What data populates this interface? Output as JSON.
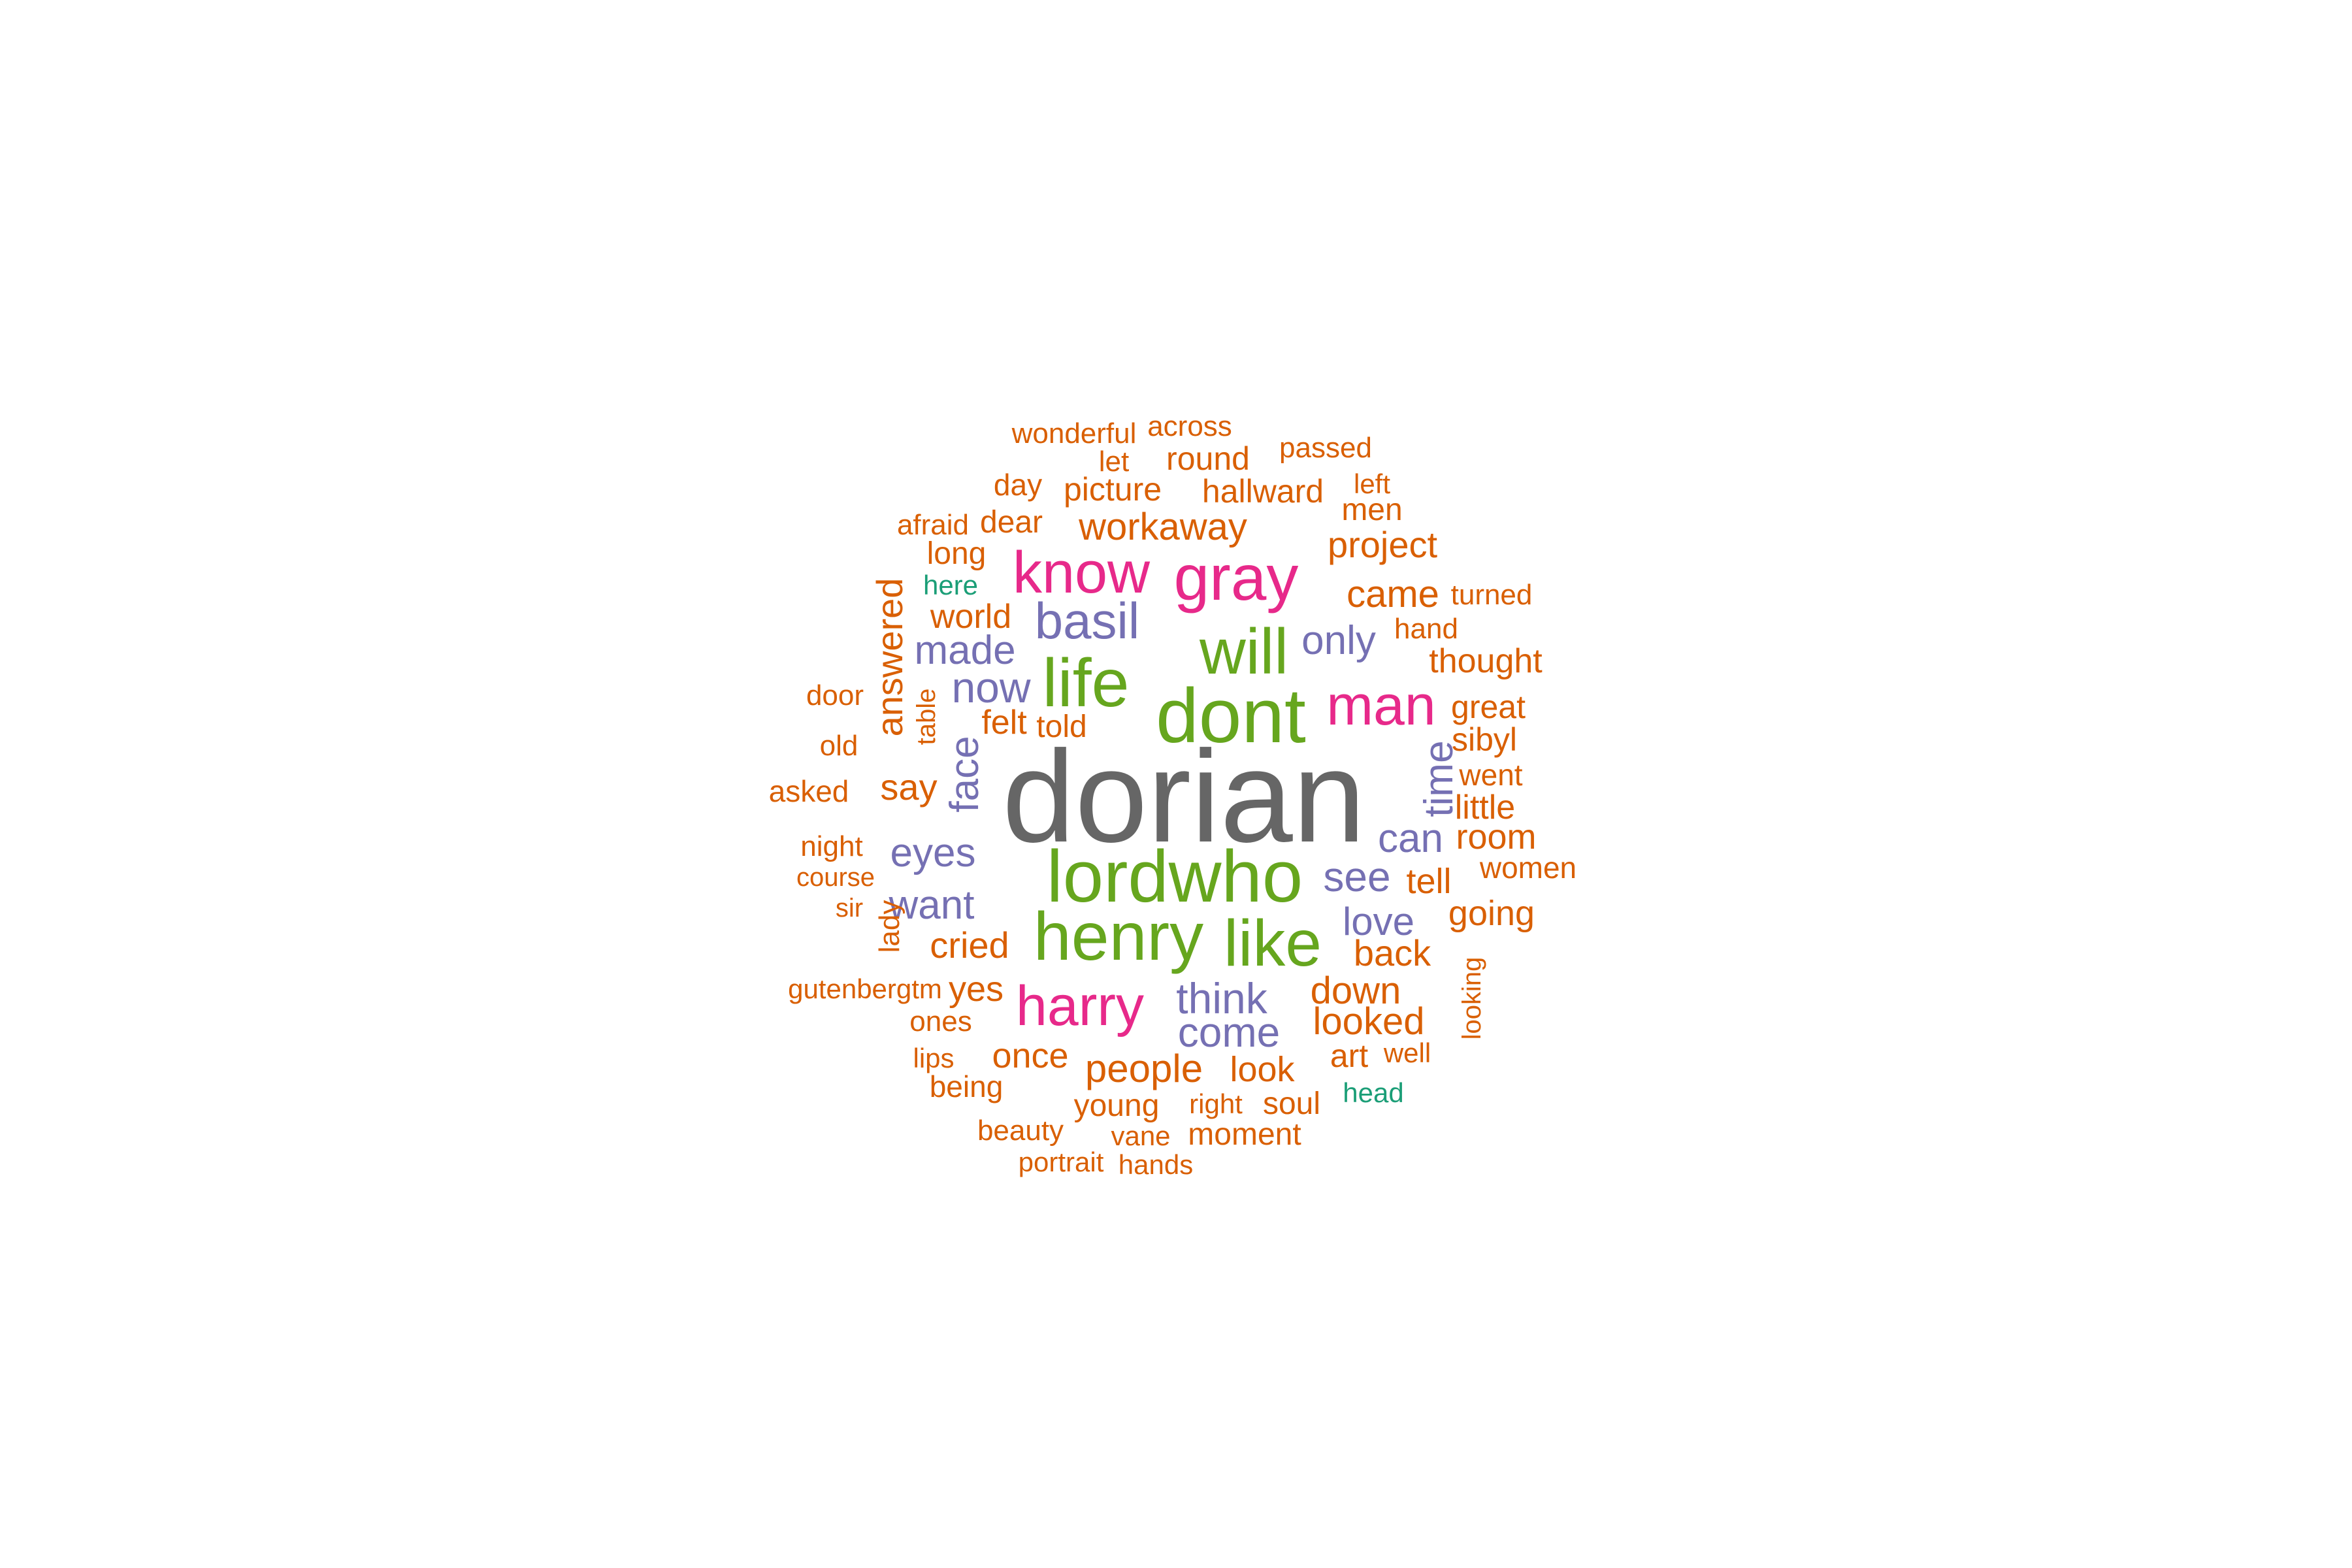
{
  "colors": {
    "orange": "#D95F02",
    "pink": "#E7298A",
    "green": "#66A61E",
    "purple": "#7570B3",
    "gray": "#666666",
    "teal": "#1B9E77"
  },
  "words": [
    {
      "text": "dorian",
      "color_group": "gray",
      "rotated": false
    },
    {
      "text": "dont",
      "color_group": "green",
      "rotated": false
    },
    {
      "text": "lordwho",
      "color_group": "green",
      "rotated": false
    },
    {
      "text": "henry",
      "color_group": "green",
      "rotated": false
    },
    {
      "text": "like",
      "color_group": "green",
      "rotated": false
    },
    {
      "text": "life",
      "color_group": "green",
      "rotated": false
    },
    {
      "text": "will",
      "color_group": "green",
      "rotated": false
    },
    {
      "text": "gray",
      "color_group": "pink",
      "rotated": false
    },
    {
      "text": "know",
      "color_group": "pink",
      "rotated": false
    },
    {
      "text": "man",
      "color_group": "pink",
      "rotated": false
    },
    {
      "text": "harry",
      "color_group": "pink",
      "rotated": false
    },
    {
      "text": "basil",
      "color_group": "purple",
      "rotated": false
    },
    {
      "text": "now",
      "color_group": "purple",
      "rotated": false
    },
    {
      "text": "made",
      "color_group": "purple",
      "rotated": false
    },
    {
      "text": "only",
      "color_group": "purple",
      "rotated": false
    },
    {
      "text": "face",
      "color_group": "purple",
      "rotated": true
    },
    {
      "text": "time",
      "color_group": "purple",
      "rotated": true
    },
    {
      "text": "can",
      "color_group": "purple",
      "rotated": false
    },
    {
      "text": "see",
      "color_group": "purple",
      "rotated": false
    },
    {
      "text": "eyes",
      "color_group": "purple",
      "rotated": false
    },
    {
      "text": "want",
      "color_group": "purple",
      "rotated": false
    },
    {
      "text": "love",
      "color_group": "purple",
      "rotated": false
    },
    {
      "text": "think",
      "color_group": "purple",
      "rotated": false
    },
    {
      "text": "come",
      "color_group": "purple",
      "rotated": false
    },
    {
      "text": "wonderful",
      "color_group": "orange",
      "rotated": false
    },
    {
      "text": "across",
      "color_group": "orange",
      "rotated": false
    },
    {
      "text": "let",
      "color_group": "orange",
      "rotated": false
    },
    {
      "text": "round",
      "color_group": "orange",
      "rotated": false
    },
    {
      "text": "passed",
      "color_group": "orange",
      "rotated": false
    },
    {
      "text": "day",
      "color_group": "orange",
      "rotated": false
    },
    {
      "text": "picture",
      "color_group": "orange",
      "rotated": false
    },
    {
      "text": "hallward",
      "color_group": "orange",
      "rotated": false
    },
    {
      "text": "left",
      "color_group": "orange",
      "rotated": false
    },
    {
      "text": "men",
      "color_group": "orange",
      "rotated": false
    },
    {
      "text": "afraid",
      "color_group": "orange",
      "rotated": false
    },
    {
      "text": "dear",
      "color_group": "orange",
      "rotated": false
    },
    {
      "text": "workaway",
      "color_group": "orange",
      "rotated": false
    },
    {
      "text": "project",
      "color_group": "orange",
      "rotated": false
    },
    {
      "text": "long",
      "color_group": "orange",
      "rotated": false
    },
    {
      "text": "here",
      "color_group": "teal",
      "rotated": false
    },
    {
      "text": "came",
      "color_group": "orange",
      "rotated": false
    },
    {
      "text": "turned",
      "color_group": "orange",
      "rotated": false
    },
    {
      "text": "answered",
      "color_group": "orange",
      "rotated": true
    },
    {
      "text": "world",
      "color_group": "orange",
      "rotated": false
    },
    {
      "text": "hand",
      "color_group": "orange",
      "rotated": false
    },
    {
      "text": "thought",
      "color_group": "orange",
      "rotated": false
    },
    {
      "text": "door",
      "color_group": "orange",
      "rotated": false
    },
    {
      "text": "table",
      "color_group": "orange",
      "rotated": true
    },
    {
      "text": "felt",
      "color_group": "orange",
      "rotated": false
    },
    {
      "text": "told",
      "color_group": "orange",
      "rotated": false
    },
    {
      "text": "great",
      "color_group": "orange",
      "rotated": false
    },
    {
      "text": "old",
      "color_group": "orange",
      "rotated": false
    },
    {
      "text": "sibyl",
      "color_group": "orange",
      "rotated": false
    },
    {
      "text": "asked",
      "color_group": "orange",
      "rotated": false
    },
    {
      "text": "say",
      "color_group": "orange",
      "rotated": false
    },
    {
      "text": "went",
      "color_group": "orange",
      "rotated": false
    },
    {
      "text": "little",
      "color_group": "orange",
      "rotated": false
    },
    {
      "text": "night",
      "color_group": "orange",
      "rotated": false
    },
    {
      "text": "room",
      "color_group": "orange",
      "rotated": false
    },
    {
      "text": "course",
      "color_group": "orange",
      "rotated": false
    },
    {
      "text": "tell",
      "color_group": "orange",
      "rotated": false
    },
    {
      "text": "women",
      "color_group": "orange",
      "rotated": false
    },
    {
      "text": "sir",
      "color_group": "orange",
      "rotated": false
    },
    {
      "text": "going",
      "color_group": "orange",
      "rotated": false
    },
    {
      "text": "lady",
      "color_group": "orange",
      "rotated": true
    },
    {
      "text": "cried",
      "color_group": "orange",
      "rotated": false
    },
    {
      "text": "back",
      "color_group": "orange",
      "rotated": false
    },
    {
      "text": "looking",
      "color_group": "orange",
      "rotated": true
    },
    {
      "text": "gutenbergtm",
      "color_group": "orange",
      "rotated": false
    },
    {
      "text": "yes",
      "color_group": "orange",
      "rotated": false
    },
    {
      "text": "down",
      "color_group": "orange",
      "rotated": false
    },
    {
      "text": "ones",
      "color_group": "orange",
      "rotated": false
    },
    {
      "text": "looked",
      "color_group": "orange",
      "rotated": false
    },
    {
      "text": "lips",
      "color_group": "orange",
      "rotated": false
    },
    {
      "text": "once",
      "color_group": "orange",
      "rotated": false
    },
    {
      "text": "art",
      "color_group": "orange",
      "rotated": false
    },
    {
      "text": "well",
      "color_group": "orange",
      "rotated": false
    },
    {
      "text": "people",
      "color_group": "orange",
      "rotated": false
    },
    {
      "text": "look",
      "color_group": "orange",
      "rotated": false
    },
    {
      "text": "being",
      "color_group": "orange",
      "rotated": false
    },
    {
      "text": "head",
      "color_group": "teal",
      "rotated": false
    },
    {
      "text": "young",
      "color_group": "orange",
      "rotated": false
    },
    {
      "text": "right",
      "color_group": "orange",
      "rotated": false
    },
    {
      "text": "soul",
      "color_group": "orange",
      "rotated": false
    },
    {
      "text": "beauty",
      "color_group": "orange",
      "rotated": false
    },
    {
      "text": "vane",
      "color_group": "orange",
      "rotated": false
    },
    {
      "text": "moment",
      "color_group": "orange",
      "rotated": false
    },
    {
      "text": "portrait",
      "color_group": "orange",
      "rotated": false
    },
    {
      "text": "hands",
      "color_group": "orange",
      "rotated": false
    }
  ]
}
